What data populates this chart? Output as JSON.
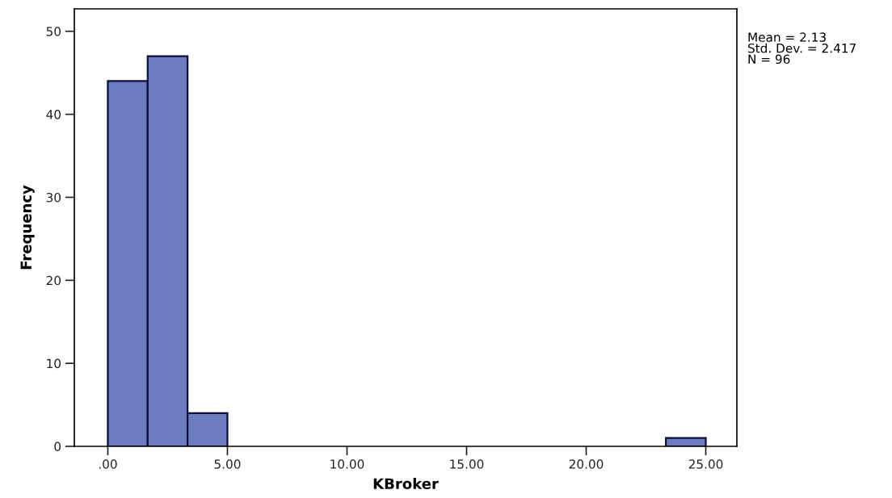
{
  "chart_data": {
    "type": "histogram",
    "xlabel": "KBroker",
    "ylabel": "Frequency",
    "bins": [
      0,
      1.6667,
      3.3333,
      5,
      6.6667,
      8.3333,
      10,
      11.6667,
      13.3333,
      15,
      16.6667,
      18.3333,
      20,
      21.6667,
      23.3333,
      25
    ],
    "values": [
      44,
      47,
      4,
      0,
      0,
      0,
      0,
      0,
      0,
      0,
      0,
      0,
      0,
      0,
      1
    ],
    "color": "#6b7dc0",
    "xlim": [
      -1.4,
      26.3
    ],
    "xticks": [
      {
        "value": 0,
        "label": ".00"
      },
      {
        "value": 5,
        "label": "5.00"
      },
      {
        "value": 10,
        "label": "10.00"
      },
      {
        "value": 15,
        "label": "15.00"
      },
      {
        "value": 20,
        "label": "20.00"
      },
      {
        "value": 25,
        "label": "25.00"
      }
    ],
    "ylim": [
      0,
      52.7
    ],
    "yticks": [
      0,
      10,
      20,
      30,
      40,
      50
    ],
    "grid": false,
    "annotations": [
      "Mean = 2.13\nStd. Dev. = 2.417\nN = 96"
    ]
  }
}
